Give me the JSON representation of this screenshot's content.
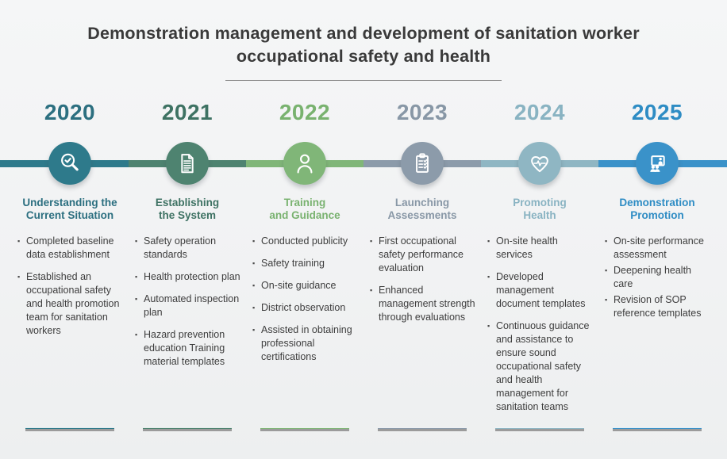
{
  "header": {
    "title_line1": "Demonstration management and development of sanitation worker",
    "title_line2": "occupational safety and health"
  },
  "columns": [
    {
      "year": "2020",
      "icon": "magnifier-check-icon",
      "title_line1": "Understanding the",
      "title_line2": "Current Situation",
      "colors": {
        "main": "#2E7A8B",
        "text": "#2C6F80"
      },
      "bullets": [
        "Completed baseline data establishment",
        "Established an occupational safety and health promotion team for sanitation workers"
      ]
    },
    {
      "year": "2021",
      "icon": "document-icon",
      "title_line1": "Establishing",
      "title_line2": "the System",
      "colors": {
        "main": "#4E8370",
        "text": "#3E7263"
      },
      "bullets": [
        "Safety operation standards",
        "Health protection plan",
        "Automated inspection plan",
        "Hazard prevention education  Training material templates"
      ]
    },
    {
      "year": "2022",
      "icon": "person-icon",
      "title_line1": "Training",
      "title_line2": "and Guidance",
      "colors": {
        "main": "#80B678",
        "text": "#79B26F"
      },
      "bullets": [
        "Conducted publicity",
        "Safety training",
        "On-site guidance",
        "District observation",
        "Assisted in obtaining professional certifications"
      ]
    },
    {
      "year": "2023",
      "icon": "clipboard-checklist-icon",
      "title_line1": "Launching",
      "title_line2": "Assessments",
      "colors": {
        "main": "#8C9BAA",
        "text": "#8897A6"
      },
      "bullets": [
        "First occupational safety performance evaluation",
        "Enhanced management strength through evaluations"
      ]
    },
    {
      "year": "2024",
      "icon": "heart-pulse-icon",
      "title_line1": "Promoting",
      "title_line2": "Health",
      "colors": {
        "main": "#8FB6C3",
        "text": "#89B3C2"
      },
      "bullets": [
        "On-site health services",
        "Developed management document templates",
        "Continuous guidance and assistance to ensure sound occupational safety and health management for sanitation teams"
      ]
    },
    {
      "year": "2025",
      "icon": "training-presentation-icon",
      "title_line1": "Demonstration",
      "title_line2": "Promotion",
      "colors": {
        "main": "#3A92C9",
        "text": "#2E8CC4"
      },
      "bullets": [
        "On-site performance assessment",
        "Deepening health care",
        "Revision of SOP reference templates"
      ]
    }
  ]
}
